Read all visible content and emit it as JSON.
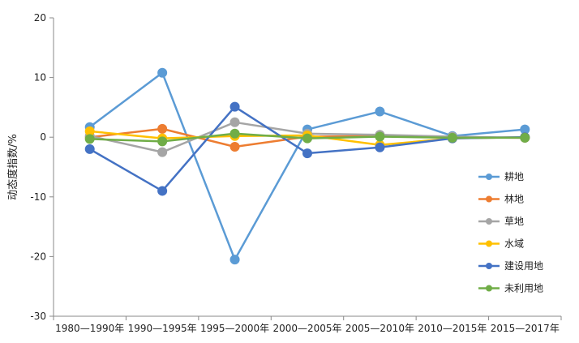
{
  "chart_data": {
    "type": "line",
    "ylabel": "动态度指数/%",
    "ylim": [
      -30,
      20
    ],
    "yticks": [
      20,
      10,
      0,
      -10,
      -20,
      -30
    ],
    "categories": [
      "1980—1990年",
      "1990—1995年",
      "1995—2000年",
      "2000—2005年",
      "2005—2010年",
      "2010—2015年",
      "2015—2017年"
    ],
    "grid": false,
    "legend_position": "right",
    "series": [
      {
        "name": "耕地",
        "color": "#5b9bd5",
        "values": [
          1.7,
          10.8,
          -20.5,
          1.3,
          4.3,
          0.2,
          1.3
        ]
      },
      {
        "name": "林地",
        "color": "#ed7d31",
        "values": [
          0.0,
          1.4,
          -1.6,
          0.1,
          0.2,
          0.0,
          -0.1
        ]
      },
      {
        "name": "草地",
        "color": "#a5a5a5",
        "values": [
          0.2,
          -2.5,
          2.5,
          0.6,
          0.4,
          0.1,
          -0.1
        ]
      },
      {
        "name": "水域",
        "color": "#ffc000",
        "values": [
          1.0,
          -0.2,
          0.2,
          0.3,
          -1.3,
          -0.2,
          0.0
        ]
      },
      {
        "name": "建设用地",
        "color": "#4472c4",
        "values": [
          -2.0,
          -9.0,
          5.1,
          -2.7,
          -1.7,
          -0.2,
          0.0
        ]
      },
      {
        "name": "未利用地",
        "color": "#70ad47",
        "values": [
          -0.3,
          -0.7,
          0.6,
          -0.2,
          0.1,
          -0.1,
          -0.1
        ]
      }
    ]
  }
}
